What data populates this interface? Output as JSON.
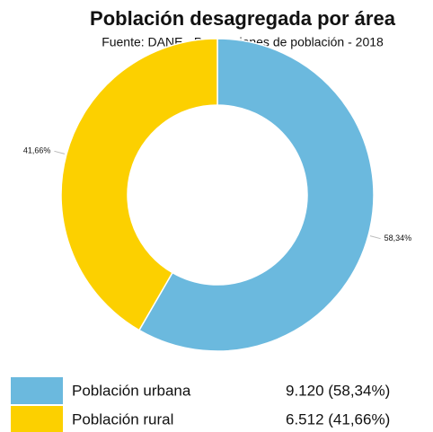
{
  "chart_data": {
    "type": "donut",
    "title": "Población desagregada por área",
    "subtitle": "Fuente: DANE - Proyecciones de población - 2018",
    "categories": [
      "Población urbana",
      "Población rural"
    ],
    "values": [
      58.34,
      41.66
    ],
    "value_labels": [
      "58,34%",
      "41,66%"
    ],
    "colors": [
      "#6bb9de",
      "#fcd000"
    ],
    "legend_values": [
      "9.120 (58,34%)",
      "6.512 (41,66%)"
    ]
  }
}
